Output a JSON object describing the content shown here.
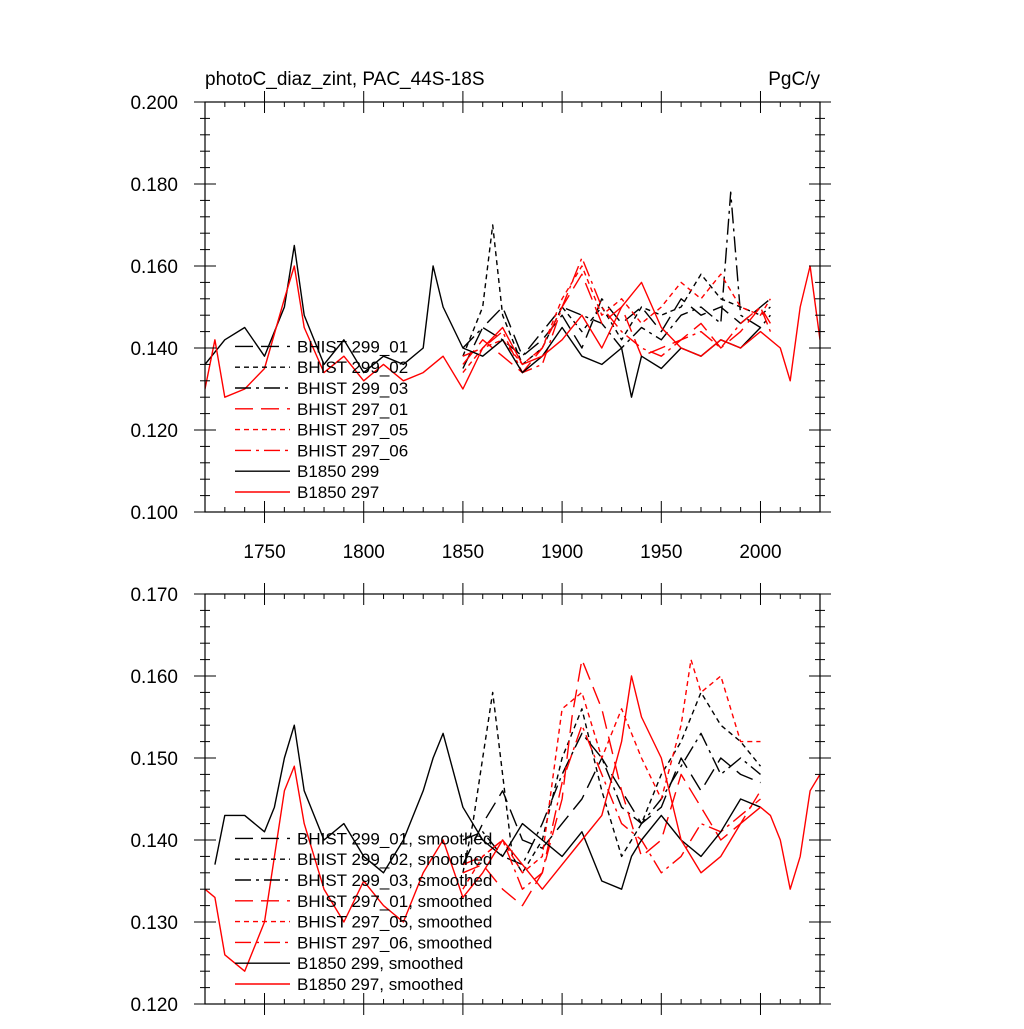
{
  "chart_data": [
    {
      "type": "line",
      "title_left": "photoC_diaz_zint, PAC_44S-18S",
      "title_right": "PgC/y",
      "xlim": [
        1720,
        2030
      ],
      "ylim": [
        0.1,
        0.2
      ],
      "xticks": [
        1750,
        1800,
        1850,
        1900,
        1950,
        2000
      ],
      "xtick_labels": [
        "1750",
        "1800",
        "1850",
        "1900",
        "1950",
        "2000"
      ],
      "yticks": [
        0.1,
        0.12,
        0.14,
        0.16,
        0.18,
        0.2
      ],
      "ytick_labels": [
        "0.100",
        "0.120",
        "0.140",
        "0.160",
        "0.180",
        "0.200"
      ],
      "legend_position": "lower-left",
      "series": [
        {
          "name": "BHIST 299_01",
          "color": "#000000",
          "dash": "long-dash",
          "x": [
            1850,
            1860,
            1870,
            1880,
            1890,
            1900,
            1910,
            1920,
            1930,
            1940,
            1950,
            1960,
            1970,
            1980,
            1990,
            2000,
            2005
          ],
          "y": [
            0.135,
            0.145,
            0.15,
            0.138,
            0.142,
            0.148,
            0.14,
            0.152,
            0.146,
            0.15,
            0.144,
            0.152,
            0.148,
            0.15,
            0.146,
            0.15,
            0.152
          ]
        },
        {
          "name": "BHIST 299_02",
          "color": "#000000",
          "dash": "short-dash",
          "x": [
            1850,
            1860,
            1865,
            1870,
            1880,
            1890,
            1900,
            1910,
            1920,
            1930,
            1940,
            1950,
            1960,
            1970,
            1980,
            1990,
            2000,
            2005
          ],
          "y": [
            0.138,
            0.15,
            0.17,
            0.148,
            0.136,
            0.14,
            0.15,
            0.144,
            0.15,
            0.142,
            0.15,
            0.148,
            0.15,
            0.158,
            0.152,
            0.15,
            0.148,
            0.15
          ]
        },
        {
          "name": "BHIST 299_03",
          "color": "#000000",
          "dash": "dash-dot",
          "x": [
            1850,
            1860,
            1870,
            1880,
            1890,
            1900,
            1910,
            1920,
            1930,
            1940,
            1950,
            1960,
            1970,
            1980,
            1985,
            1990,
            2000,
            2005
          ],
          "y": [
            0.14,
            0.145,
            0.142,
            0.138,
            0.144,
            0.15,
            0.148,
            0.146,
            0.14,
            0.145,
            0.142,
            0.148,
            0.15,
            0.146,
            0.178,
            0.148,
            0.145,
            0.148
          ]
        },
        {
          "name": "BHIST 297_01",
          "color": "#ff0000",
          "dash": "long-dash",
          "x": [
            1850,
            1860,
            1870,
            1880,
            1890,
            1900,
            1910,
            1920,
            1930,
            1940,
            1950,
            1960,
            1970,
            1980,
            1990,
            2000,
            2005
          ],
          "y": [
            0.136,
            0.142,
            0.138,
            0.134,
            0.14,
            0.15,
            0.158,
            0.146,
            0.15,
            0.138,
            0.14,
            0.142,
            0.146,
            0.14,
            0.144,
            0.15,
            0.146
          ]
        },
        {
          "name": "BHIST 297_05",
          "color": "#ff0000",
          "dash": "short-dash",
          "x": [
            1850,
            1860,
            1870,
            1880,
            1890,
            1900,
            1910,
            1920,
            1930,
            1940,
            1950,
            1960,
            1970,
            1980,
            1990,
            2000,
            2005
          ],
          "y": [
            0.134,
            0.14,
            0.142,
            0.136,
            0.14,
            0.152,
            0.16,
            0.148,
            0.152,
            0.146,
            0.15,
            0.156,
            0.152,
            0.158,
            0.15,
            0.148,
            0.152
          ]
        },
        {
          "name": "BHIST 297_06",
          "color": "#ff0000",
          "dash": "dash-dot",
          "x": [
            1850,
            1860,
            1870,
            1880,
            1890,
            1900,
            1910,
            1920,
            1930,
            1940,
            1950,
            1960,
            1970,
            1980,
            1990,
            2000,
            2005
          ],
          "y": [
            0.138,
            0.14,
            0.144,
            0.134,
            0.136,
            0.15,
            0.162,
            0.15,
            0.144,
            0.14,
            0.138,
            0.142,
            0.144,
            0.14,
            0.146,
            0.15,
            0.144
          ]
        },
        {
          "name": "B1850 299",
          "color": "#000000",
          "dash": "solid",
          "x": [
            1720,
            1730,
            1740,
            1750,
            1760,
            1765,
            1770,
            1780,
            1790,
            1800,
            1810,
            1820,
            1830,
            1835,
            1840,
            1850,
            1860,
            1870,
            1880,
            1890,
            1900,
            1910,
            1920,
            1930,
            1935,
            1940,
            1950,
            1960,
            1970,
            1980,
            1990,
            2000
          ],
          "y": [
            0.136,
            0.142,
            0.145,
            0.138,
            0.15,
            0.165,
            0.148,
            0.136,
            0.142,
            0.134,
            0.138,
            0.136,
            0.14,
            0.16,
            0.15,
            0.14,
            0.138,
            0.142,
            0.134,
            0.138,
            0.145,
            0.138,
            0.136,
            0.14,
            0.128,
            0.138,
            0.135,
            0.14,
            0.138,
            0.142,
            0.14,
            0.145
          ]
        },
        {
          "name": "B1850 297",
          "color": "#ff0000",
          "dash": "solid",
          "x": [
            1720,
            1725,
            1730,
            1740,
            1750,
            1760,
            1765,
            1770,
            1780,
            1790,
            1800,
            1810,
            1820,
            1830,
            1840,
            1850,
            1860,
            1870,
            1880,
            1890,
            1900,
            1910,
            1920,
            1930,
            1940,
            1950,
            1960,
            1970,
            1980,
            1990,
            2000,
            2010,
            2015,
            2020,
            2025,
            2030
          ],
          "y": [
            0.13,
            0.142,
            0.128,
            0.13,
            0.135,
            0.152,
            0.16,
            0.145,
            0.134,
            0.138,
            0.132,
            0.136,
            0.132,
            0.134,
            0.138,
            0.13,
            0.14,
            0.145,
            0.136,
            0.138,
            0.142,
            0.148,
            0.14,
            0.15,
            0.156,
            0.145,
            0.14,
            0.138,
            0.142,
            0.14,
            0.144,
            0.14,
            0.132,
            0.15,
            0.16,
            0.142
          ]
        }
      ]
    },
    {
      "type": "line",
      "xlim": [
        1720,
        2030
      ],
      "ylim": [
        0.12,
        0.17
      ],
      "xticks": [
        1750,
        1800,
        1850,
        1900,
        1950,
        2000
      ],
      "yticks": [
        0.12,
        0.13,
        0.14,
        0.15,
        0.16,
        0.17
      ],
      "ytick_labels": [
        "0.120",
        "0.130",
        "0.140",
        "0.150",
        "0.160",
        "0.170"
      ],
      "legend_position": "lower-left",
      "series": [
        {
          "name": "BHIST 299_01, smoothed",
          "color": "#000000",
          "dash": "long-dash",
          "x": [
            1850,
            1860,
            1870,
            1880,
            1890,
            1900,
            1910,
            1920,
            1930,
            1940,
            1950,
            1960,
            1970,
            1980,
            1990,
            2000
          ],
          "y": [
            0.137,
            0.142,
            0.146,
            0.14,
            0.139,
            0.142,
            0.145,
            0.15,
            0.146,
            0.142,
            0.144,
            0.15,
            0.146,
            0.15,
            0.148,
            0.147
          ]
        },
        {
          "name": "BHIST 299_02, smoothed",
          "color": "#000000",
          "dash": "short-dash",
          "x": [
            1850,
            1855,
            1860,
            1865,
            1870,
            1875,
            1880,
            1890,
            1900,
            1910,
            1920,
            1930,
            1940,
            1950,
            1960,
            1970,
            1980,
            1990,
            2000
          ],
          "y": [
            0.136,
            0.142,
            0.15,
            0.158,
            0.148,
            0.138,
            0.136,
            0.14,
            0.15,
            0.156,
            0.146,
            0.138,
            0.142,
            0.148,
            0.152,
            0.158,
            0.154,
            0.152,
            0.149
          ]
        },
        {
          "name": "BHIST 299_03, smoothed",
          "color": "#000000",
          "dash": "dash-dot",
          "x": [
            1850,
            1860,
            1870,
            1880,
            1890,
            1900,
            1910,
            1920,
            1930,
            1940,
            1950,
            1960,
            1970,
            1980,
            1990,
            2000
          ],
          "y": [
            0.14,
            0.141,
            0.138,
            0.137,
            0.142,
            0.148,
            0.153,
            0.15,
            0.144,
            0.142,
            0.145,
            0.149,
            0.153,
            0.148,
            0.15,
            0.148
          ]
        },
        {
          "name": "BHIST 297_01, smoothed",
          "color": "#ff0000",
          "dash": "long-dash",
          "x": [
            1850,
            1860,
            1870,
            1880,
            1890,
            1900,
            1905,
            1910,
            1920,
            1930,
            1940,
            1950,
            1960,
            1970,
            1980,
            1990,
            2000
          ],
          "y": [
            0.136,
            0.137,
            0.134,
            0.132,
            0.136,
            0.145,
            0.155,
            0.162,
            0.156,
            0.146,
            0.138,
            0.14,
            0.148,
            0.144,
            0.14,
            0.142,
            0.146
          ]
        },
        {
          "name": "BHIST 297_05, smoothed",
          "color": "#ff0000",
          "dash": "short-dash",
          "x": [
            1850,
            1860,
            1870,
            1880,
            1890,
            1900,
            1910,
            1920,
            1930,
            1940,
            1950,
            1960,
            1965,
            1970,
            1980,
            1990,
            2000
          ],
          "y": [
            0.134,
            0.138,
            0.14,
            0.136,
            0.138,
            0.156,
            0.158,
            0.15,
            0.156,
            0.15,
            0.145,
            0.154,
            0.162,
            0.158,
            0.16,
            0.152,
            0.152
          ]
        },
        {
          "name": "BHIST 297_06, smoothed",
          "color": "#ff0000",
          "dash": "dash-dot",
          "x": [
            1850,
            1860,
            1870,
            1880,
            1890,
            1900,
            1910,
            1920,
            1930,
            1940,
            1950,
            1960,
            1970,
            1980,
            1990,
            2000
          ],
          "y": [
            0.137,
            0.138,
            0.14,
            0.134,
            0.136,
            0.147,
            0.154,
            0.148,
            0.142,
            0.14,
            0.136,
            0.138,
            0.142,
            0.141,
            0.143,
            0.145
          ]
        },
        {
          "name": "B1850 299, smoothed",
          "color": "#000000",
          "dash": "solid",
          "x": [
            1725,
            1730,
            1740,
            1750,
            1755,
            1760,
            1765,
            1770,
            1780,
            1790,
            1800,
            1810,
            1820,
            1830,
            1835,
            1840,
            1850,
            1860,
            1870,
            1880,
            1890,
            1900,
            1910,
            1920,
            1930,
            1935,
            1940,
            1950,
            1960,
            1970,
            1980,
            1990,
            2000
          ],
          "y": [
            0.137,
            0.143,
            0.143,
            0.141,
            0.144,
            0.15,
            0.154,
            0.146,
            0.14,
            0.142,
            0.138,
            0.136,
            0.14,
            0.146,
            0.15,
            0.153,
            0.144,
            0.14,
            0.138,
            0.142,
            0.14,
            0.138,
            0.141,
            0.135,
            0.134,
            0.138,
            0.14,
            0.143,
            0.14,
            0.138,
            0.141,
            0.145,
            0.144
          ]
        },
        {
          "name": "B1850 297, smoothed",
          "color": "#ff0000",
          "dash": "solid",
          "x": [
            1720,
            1725,
            1730,
            1740,
            1750,
            1760,
            1765,
            1770,
            1780,
            1790,
            1800,
            1810,
            1820,
            1830,
            1840,
            1850,
            1860,
            1870,
            1880,
            1890,
            1900,
            1910,
            1920,
            1930,
            1935,
            1940,
            1950,
            1960,
            1970,
            1980,
            1990,
            2000,
            2005,
            2010,
            2015,
            2020,
            2025,
            2030
          ],
          "y": [
            0.134,
            0.133,
            0.126,
            0.124,
            0.13,
            0.146,
            0.149,
            0.142,
            0.134,
            0.13,
            0.135,
            0.132,
            0.13,
            0.136,
            0.14,
            0.133,
            0.136,
            0.14,
            0.137,
            0.134,
            0.137,
            0.14,
            0.143,
            0.152,
            0.16,
            0.155,
            0.15,
            0.14,
            0.136,
            0.138,
            0.142,
            0.144,
            0.143,
            0.14,
            0.134,
            0.138,
            0.146,
            0.148
          ]
        }
      ]
    }
  ]
}
